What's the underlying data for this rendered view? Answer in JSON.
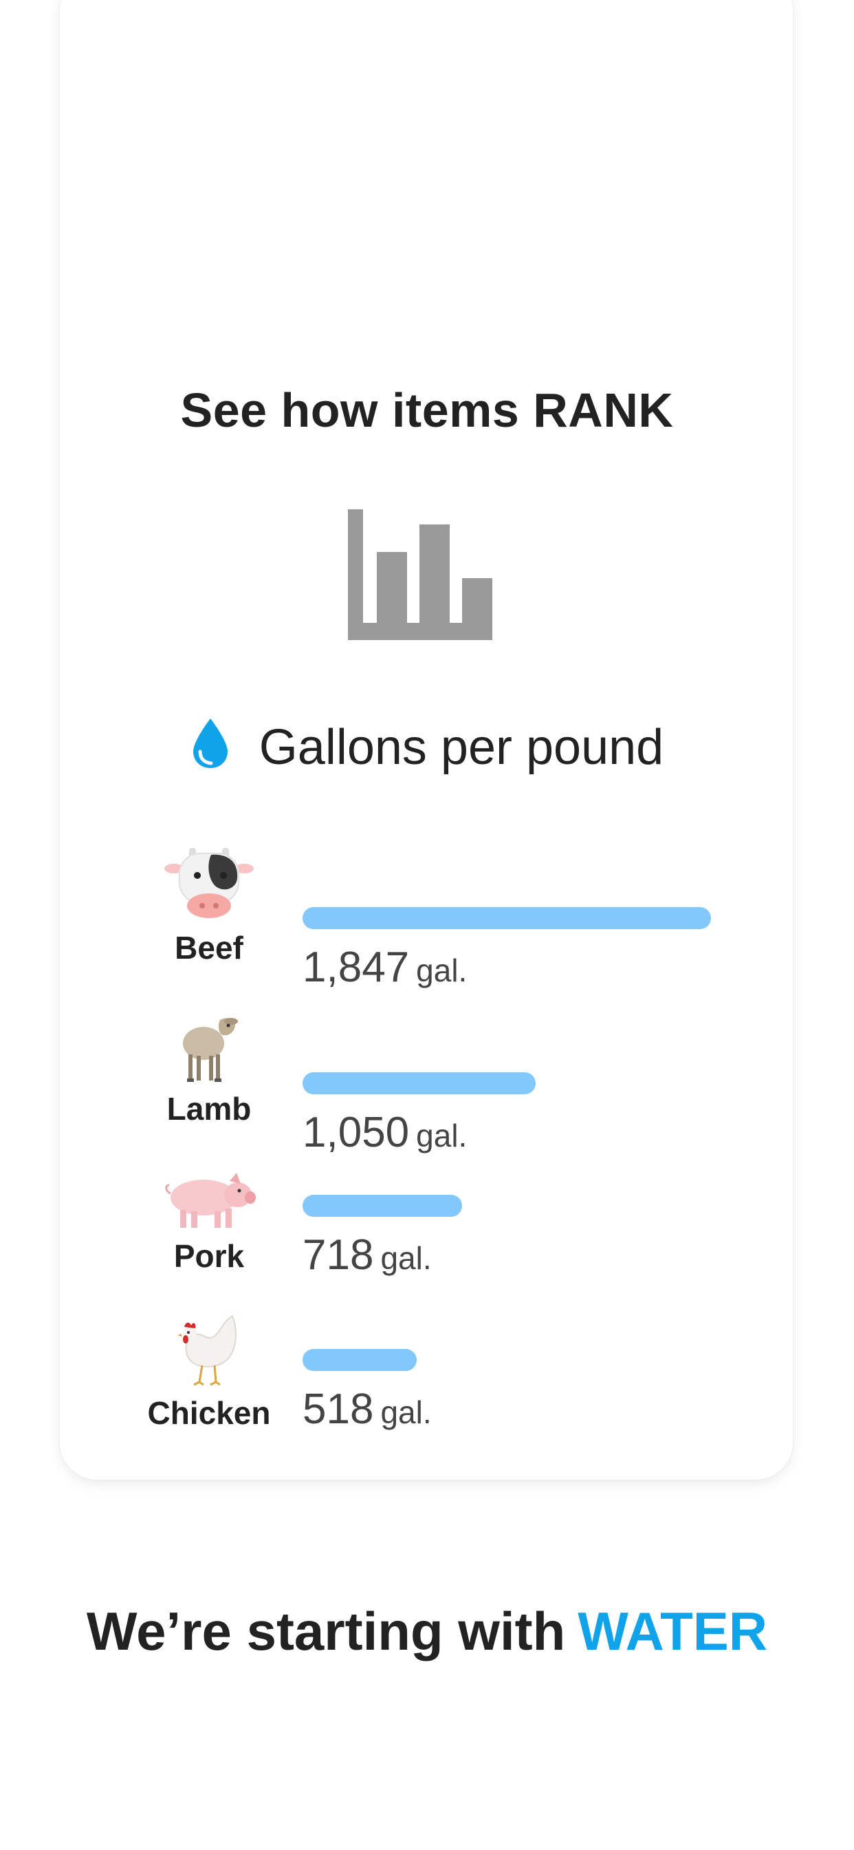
{
  "card": {
    "title": "See how items RANK",
    "icon": "bar-chart-icon",
    "metric": {
      "icon": "water-drop-icon",
      "label": "Gallons per pound"
    },
    "items": [
      {
        "name": "Beef",
        "value": "1,847",
        "unit": "gal.",
        "fraction": 1.0,
        "icon": "cow-icon"
      },
      {
        "name": "Lamb",
        "value": "1,050",
        "unit": "gal.",
        "fraction": 0.57,
        "icon": "sheep-icon"
      },
      {
        "name": "Pork",
        "value": "718",
        "unit": "gal.",
        "fraction": 0.39,
        "icon": "pig-icon"
      },
      {
        "name": "Chicken",
        "value": "518",
        "unit": "gal.",
        "fraction": 0.28,
        "icon": "chicken-icon"
      }
    ]
  },
  "footer": {
    "text": "We’re starting with",
    "accent": "WATER"
  },
  "colors": {
    "bar": "#82c8fb",
    "accent": "#11a3ea",
    "icon_gray": "#999999"
  }
}
